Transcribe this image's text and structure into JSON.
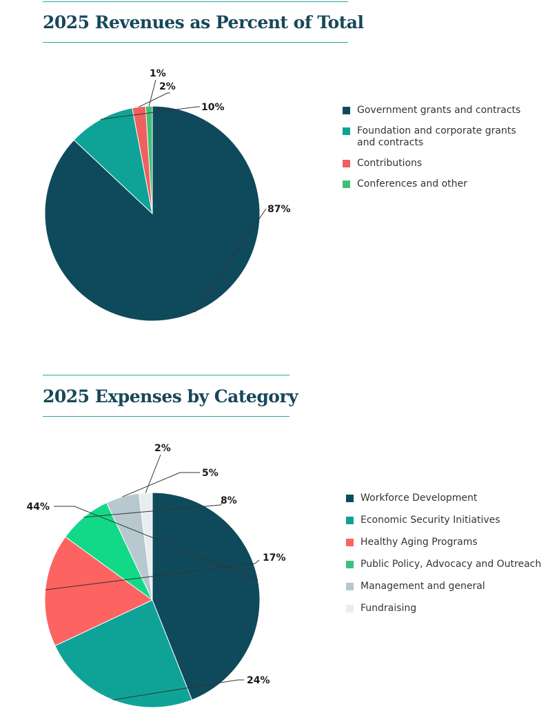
{
  "chart_data": [
    {
      "type": "pie",
      "title": "2025 Revenues as Percent of Total",
      "categories": [
        "Government grants and contracts",
        "Foundation and corporate grants\nand contracts",
        "Contributions",
        "Conferences and other"
      ],
      "values": [
        87,
        10,
        2,
        1
      ],
      "value_labels": [
        "87%",
        "10%",
        "2%",
        "1%"
      ],
      "colors": [
        "#0f4a5c",
        "#0fa397",
        "#f0605f",
        "#3fbf7a"
      ],
      "legend_placement": "right"
    },
    {
      "type": "pie",
      "title": "2025 Expenses by Category",
      "categories": [
        "Workforce Development",
        "Economic Security Initiatives",
        "Healthy Aging Programs",
        "Public Policy, Advocacy and Outreach",
        "Management and general",
        "Fundraising"
      ],
      "values": [
        44,
        24,
        17,
        8,
        5,
        2
      ],
      "value_labels": [
        "44%",
        "24%",
        "17%",
        "8%",
        "5%",
        "2%"
      ],
      "colors": [
        "#0f4a5c",
        "#0fa397",
        "#fd6361",
        "#12d988",
        "#b7c8cf",
        "#e8eef0"
      ],
      "legend_placement": "right"
    }
  ]
}
